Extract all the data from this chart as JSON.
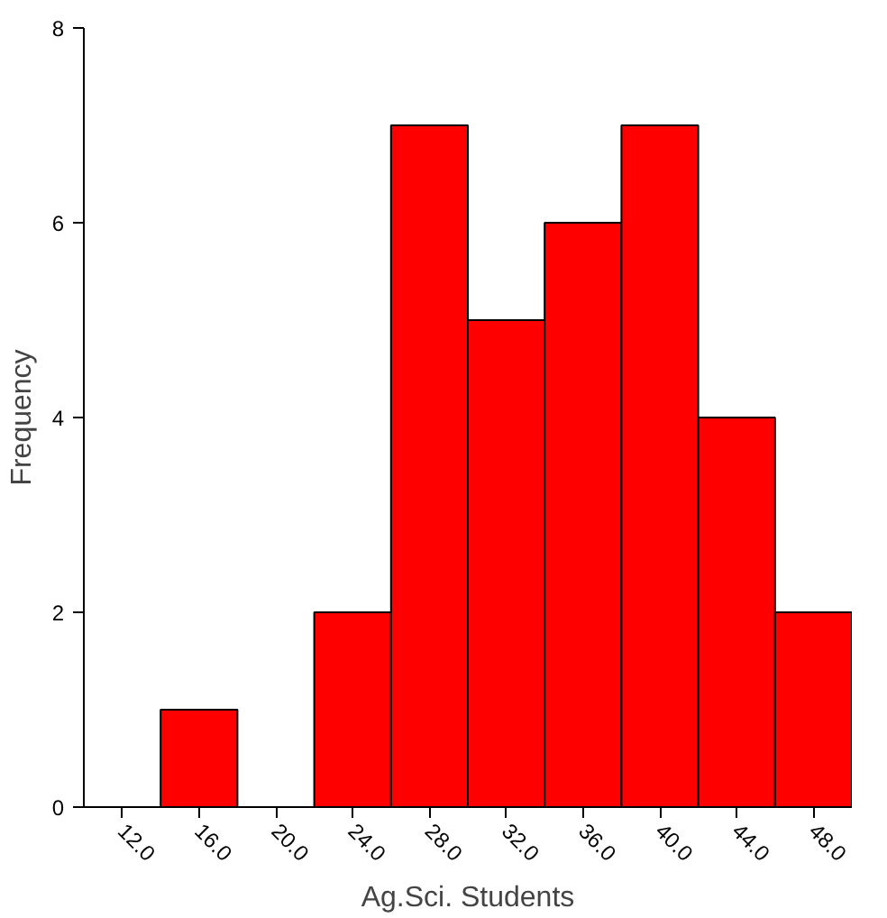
{
  "chart_data": {
    "type": "histogram",
    "xlabel": "Ag.Sci. Students",
    "ylabel": "Frequency",
    "bins": [
      10,
      14,
      18,
      22,
      26,
      30,
      34,
      38,
      42,
      46,
      50
    ],
    "values": [
      0,
      1,
      0,
      2,
      7,
      5,
      6,
      7,
      4,
      2
    ],
    "color": "#ff0000",
    "xlim": [
      10,
      50
    ],
    "xticks": [
      {
        "value": 12,
        "label": "12.0"
      },
      {
        "value": 16,
        "label": "16.0"
      },
      {
        "value": 20,
        "label": "20.0"
      },
      {
        "value": 24,
        "label": "24.0"
      },
      {
        "value": 28,
        "label": "28.0"
      },
      {
        "value": 32,
        "label": "32.0"
      },
      {
        "value": 36,
        "label": "36.0"
      },
      {
        "value": 40,
        "label": "40.0"
      },
      {
        "value": 44,
        "label": "44.0"
      },
      {
        "value": 48,
        "label": "48.0"
      }
    ],
    "ylim": [
      0,
      8
    ],
    "yticks": [
      0,
      2,
      4,
      6,
      8
    ],
    "grid": false
  }
}
